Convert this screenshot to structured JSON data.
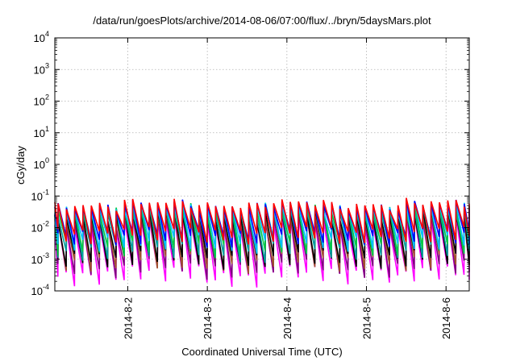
{
  "chart_data": {
    "type": "line",
    "title": "/data/run/goesPlots/archive/2014-08-06/07:00/flux/../bryn/5daysMars.plot",
    "xlabel": "Coordinated Universal Time (UTC)",
    "ylabel": "cGy/day",
    "y_scale": "log",
    "ylim": [
      0.0001,
      10000
    ],
    "xlim": [
      "2014-08-01T02:00",
      "2014-08-06T07:00"
    ],
    "x_ticks": [
      "2014-8-2",
      "2014-8-3",
      "2014-8-4",
      "2014-8-5",
      "2014-8-6"
    ],
    "y_ticks": [
      {
        "base": "10",
        "exp": "-4"
      },
      {
        "base": "10",
        "exp": "-3"
      },
      {
        "base": "10",
        "exp": "-2"
      },
      {
        "base": "10",
        "exp": "-1"
      },
      {
        "base": "10",
        "exp": "0"
      },
      {
        "base": "10",
        "exp": "1"
      },
      {
        "base": "10",
        "exp": "2"
      },
      {
        "base": "10",
        "exp": "3"
      },
      {
        "base": "10",
        "exp": "4"
      }
    ],
    "grid": true,
    "legend": "none",
    "sawtooth_period_hours": 2.5,
    "series": [
      {
        "color": "#ff00ff",
        "peak": [
          0.012,
          0.02,
          0.012,
          0.02,
          0.012,
          0.02
        ],
        "trough": [
          0.00028,
          0.0004,
          0.00025,
          0.0004,
          0.0003,
          0.0004
        ]
      },
      {
        "color": "#800080",
        "peak": [
          0.015,
          0.025,
          0.015,
          0.025,
          0.015,
          0.025
        ],
        "trough": [
          0.0005,
          0.0007,
          0.00045,
          0.0007,
          0.0005,
          0.0007
        ]
      },
      {
        "color": "#a0522d",
        "peak": [
          0.02,
          0.03,
          0.02,
          0.03,
          0.02,
          0.03
        ],
        "trough": [
          0.0008,
          0.001,
          0.0007,
          0.001,
          0.0008,
          0.001
        ]
      },
      {
        "color": "#000000",
        "peak": [
          0.022,
          0.035,
          0.022,
          0.035,
          0.022,
          0.035
        ],
        "trough": [
          0.001,
          0.0013,
          0.0009,
          0.0013,
          0.001,
          0.0013
        ]
      },
      {
        "color": "#00a0a0",
        "peak": [
          0.03,
          0.04,
          0.03,
          0.04,
          0.03,
          0.04
        ],
        "trough": [
          0.0018,
          0.0022,
          0.0015,
          0.0022,
          0.0018,
          0.0022
        ]
      },
      {
        "color": "#00cc44",
        "peak": [
          0.035,
          0.045,
          0.035,
          0.045,
          0.035,
          0.045
        ],
        "trough": [
          0.0025,
          0.003,
          0.0022,
          0.003,
          0.0025,
          0.003
        ]
      },
      {
        "color": "#00bfff",
        "peak": [
          0.04,
          0.05,
          0.04,
          0.05,
          0.04,
          0.05
        ],
        "trough": [
          0.0035,
          0.004,
          0.003,
          0.004,
          0.0035,
          0.004
        ]
      },
      {
        "color": "#0000ff",
        "peak": [
          0.045,
          0.06,
          0.045,
          0.06,
          0.045,
          0.06
        ],
        "trough": [
          0.005,
          0.006,
          0.0045,
          0.006,
          0.005,
          0.006
        ]
      },
      {
        "color": "#ff0000",
        "peak": [
          0.05,
          0.065,
          0.05,
          0.065,
          0.05,
          0.065
        ],
        "trough": [
          0.006,
          0.007,
          0.0055,
          0.007,
          0.006,
          0.007
        ]
      }
    ]
  }
}
